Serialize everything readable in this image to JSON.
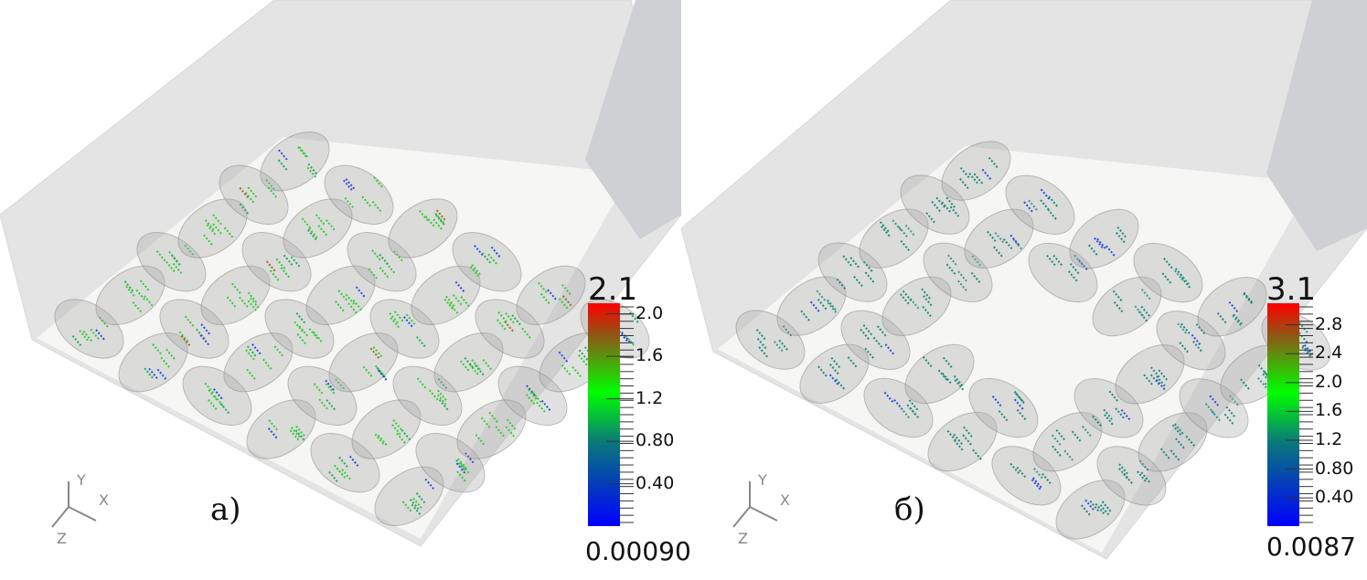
{
  "panels": [
    {
      "label": "a)",
      "colorbar": {
        "max_label": "2.1",
        "min_label": "0.00090",
        "min": 0.0009,
        "max": 2.1,
        "ticks": [
          "2.0",
          "1.6",
          "1.2",
          "0.80",
          "0.40"
        ],
        "tick_values": [
          2.0,
          1.6,
          1.2,
          0.8,
          0.4
        ],
        "colors": [
          "#0000ff",
          "#0a7a78",
          "#00ff00",
          "#8b5a14",
          "#ff0000"
        ]
      },
      "axes": {
        "x": "X",
        "y": "Y",
        "z": "Z"
      },
      "dominant_color": "#33cc33"
    },
    {
      "label": "б)",
      "colorbar": {
        "max_label": "3.1",
        "min_label": "0.0087",
        "min": 0.0087,
        "max": 3.1,
        "ticks": [
          "2.8",
          "2.4",
          "2.0",
          "1.6",
          "1.2",
          "0.80",
          "0.40"
        ],
        "tick_values": [
          2.8,
          2.4,
          2.0,
          1.6,
          1.2,
          0.8,
          0.4
        ],
        "colors": [
          "#0000ff",
          "#0a7a78",
          "#00ff00",
          "#8b5a14",
          "#ff0000"
        ]
      },
      "axes": {
        "x": "X",
        "y": "Y",
        "z": "Z"
      },
      "dominant_color": "#1a8a7a"
    }
  ]
}
